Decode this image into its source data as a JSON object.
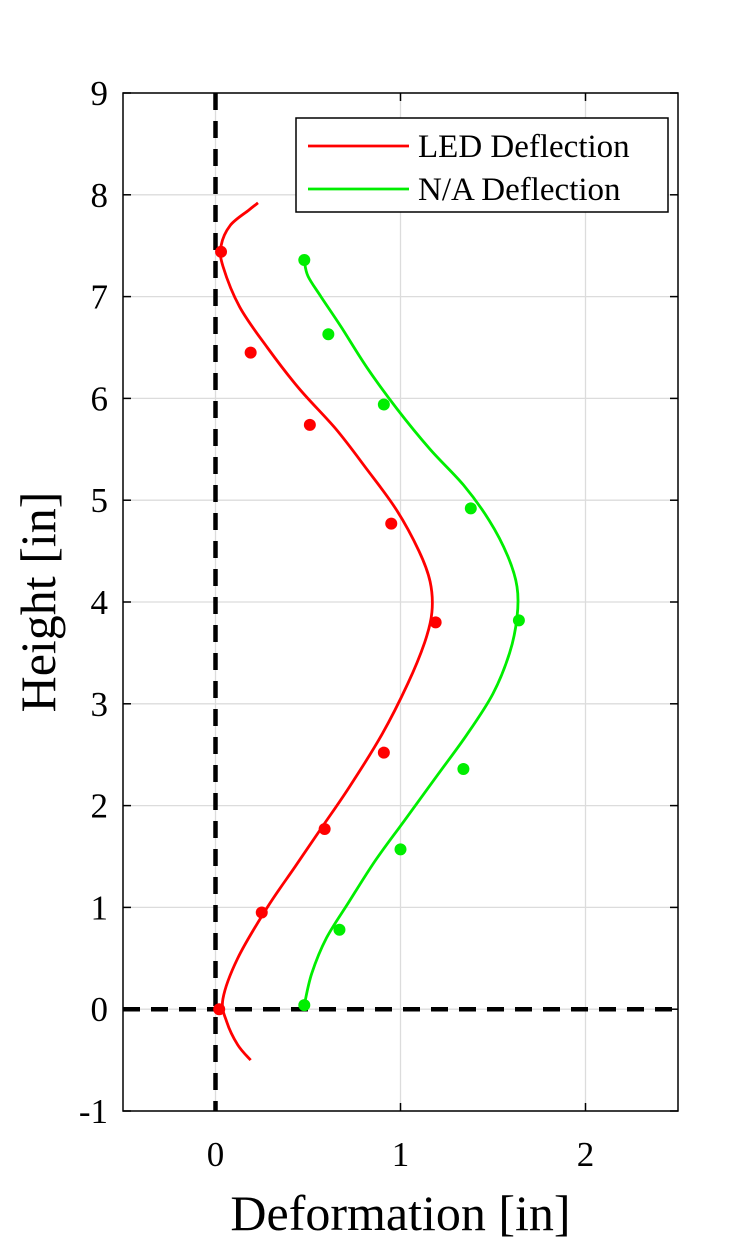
{
  "chart_data": {
    "type": "line",
    "xlabel": "Deformation [in]",
    "ylabel": "Height [in]",
    "xlim": [
      -0.5,
      2.5
    ],
    "ylim": [
      -1,
      9
    ],
    "xticks": [
      0,
      1,
      2
    ],
    "yticks": [
      -1,
      0,
      1,
      2,
      3,
      4,
      5,
      6,
      7,
      8,
      9
    ],
    "grid": true,
    "legend_position": "top-right",
    "reference_lines": [
      {
        "orientation": "vertical",
        "value": 0,
        "style": "dashed",
        "color": "#000000"
      },
      {
        "orientation": "horizontal",
        "value": 0,
        "style": "dashed",
        "color": "#000000"
      }
    ],
    "series": [
      {
        "name": "LED Deflection",
        "color": "#ff0000",
        "curve": {
          "x": [
            0.19,
            0.12,
            0.06,
            0.04,
            0.12,
            0.28,
            0.43,
            0.58,
            0.73,
            0.9,
            1.04,
            1.13,
            1.17,
            1.16,
            1.1,
            0.98,
            0.82,
            0.65,
            0.45,
            0.28,
            0.13,
            0.04,
            0.03,
            0.08,
            0.18,
            0.23
          ],
          "y": [
            -0.5,
            -0.35,
            -0.12,
            0.1,
            0.5,
            1.0,
            1.4,
            1.8,
            2.2,
            2.7,
            3.2,
            3.6,
            3.9,
            4.2,
            4.5,
            4.9,
            5.3,
            5.7,
            6.1,
            6.5,
            6.9,
            7.3,
            7.5,
            7.7,
            7.85,
            7.92
          ]
        },
        "points": {
          "x": [
            0.02,
            0.25,
            0.59,
            0.91,
            1.19,
            0.95,
            0.51,
            0.19,
            0.03
          ],
          "y": [
            0.0,
            0.95,
            1.77,
            2.52,
            3.8,
            4.77,
            5.74,
            6.45,
            7.44
          ]
        }
      },
      {
        "name": "N/A Deflection",
        "color": "#00ee00",
        "curve": {
          "x": [
            0.48,
            0.52,
            0.6,
            0.72,
            0.86,
            1.02,
            1.2,
            1.36,
            1.5,
            1.59,
            1.63,
            1.63,
            1.58,
            1.48,
            1.34,
            1.16,
            0.98,
            0.82,
            0.68,
            0.57,
            0.5,
            0.48
          ],
          "y": [
            0.04,
            0.35,
            0.7,
            1.05,
            1.45,
            1.85,
            2.3,
            2.7,
            3.1,
            3.5,
            3.85,
            4.15,
            4.45,
            4.8,
            5.15,
            5.5,
            5.9,
            6.3,
            6.7,
            7.0,
            7.2,
            7.35
          ]
        },
        "points": {
          "x": [
            0.48,
            0.67,
            1.0,
            1.34,
            1.64,
            1.38,
            0.91,
            0.61,
            0.48
          ],
          "y": [
            0.04,
            0.78,
            1.57,
            2.36,
            3.82,
            4.92,
            5.94,
            6.63,
            7.36
          ]
        }
      }
    ]
  }
}
